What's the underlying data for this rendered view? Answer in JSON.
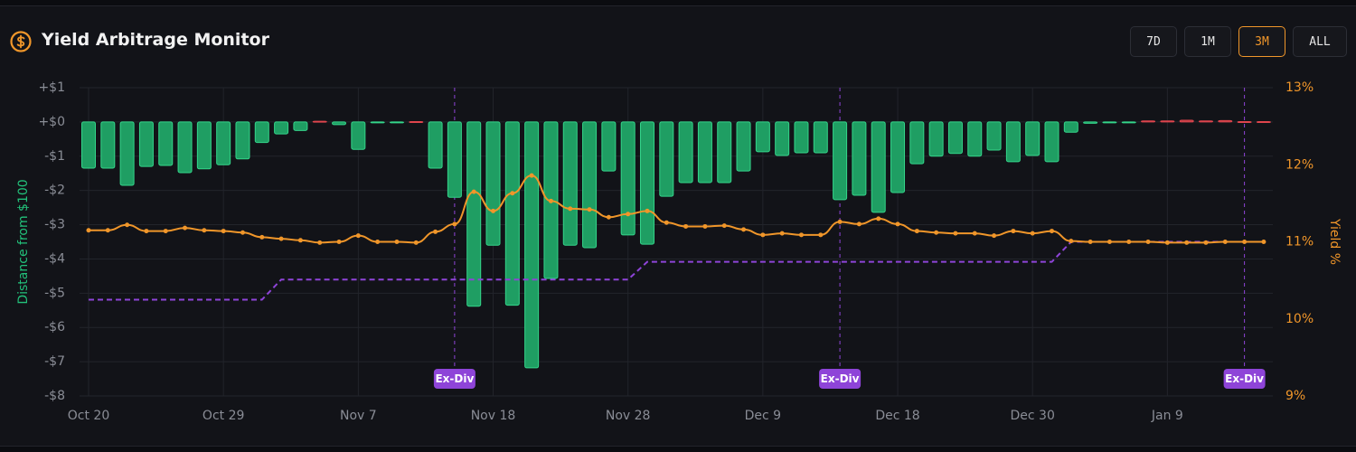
{
  "header": {
    "title": "Yield Arbitrage Monitor",
    "buttons": [
      "7D",
      "1M",
      "3M",
      "ALL"
    ],
    "active_button": 2
  },
  "chart_data": {
    "type": "bar",
    "categories": [
      "Oct 20",
      null,
      null,
      null,
      null,
      null,
      null,
      "Oct 29",
      null,
      null,
      null,
      null,
      null,
      null,
      "Nov 7",
      null,
      null,
      null,
      null,
      null,
      null,
      "Nov 18",
      null,
      null,
      null,
      null,
      null,
      null,
      "Nov 28",
      null,
      null,
      null,
      null,
      null,
      null,
      "Dec 9",
      null,
      null,
      null,
      null,
      null,
      null,
      "Dec 18",
      null,
      null,
      null,
      null,
      null,
      null,
      "Dec 30",
      null,
      null,
      null,
      null,
      null,
      null,
      "Jan 9",
      null,
      null,
      null,
      null,
      null
    ],
    "series": [
      {
        "type": "bar",
        "color": "#1f9e63",
        "positive_color": "#e0454d",
        "values": [
          -1.35,
          -1.35,
          -1.85,
          -1.3,
          -1.27,
          -1.48,
          -1.37,
          -1.25,
          -1.08,
          -0.6,
          -0.35,
          -0.25,
          0.02,
          -0.08,
          -0.8,
          0,
          0,
          0.01,
          -1.35,
          -2.2,
          -5.38,
          -3.6,
          -5.35,
          -7.18,
          -4.57,
          -3.6,
          -3.67,
          -1.43,
          -3.3,
          -3.57,
          -2.17,
          -1.77,
          -1.77,
          -1.77,
          -1.43,
          -0.87,
          -0.98,
          -0.9,
          -0.9,
          -2.27,
          -2.14,
          -2.64,
          -2.06,
          -1.22,
          -1.0,
          -0.92,
          -1.0,
          -0.82,
          -1.16,
          -0.98,
          -1.16,
          -0.3,
          -0.04,
          -0.01,
          0,
          0.03,
          0.03,
          0.05,
          0.03,
          0.04,
          0.01,
          0.01
        ]
      },
      {
        "type": "line",
        "axis": "y2",
        "color": "#f0962a",
        "values": [
          11.15,
          11.15,
          11.22,
          11.14,
          11.14,
          11.18,
          11.15,
          11.14,
          11.12,
          11.06,
          11.04,
          11.02,
          10.99,
          11.0,
          11.08,
          11.0,
          11.0,
          10.99,
          11.13,
          11.23,
          11.65,
          11.4,
          11.63,
          11.86,
          11.53,
          11.43,
          11.42,
          11.32,
          11.36,
          11.4,
          11.25,
          11.2,
          11.2,
          11.21,
          11.16,
          11.09,
          11.11,
          11.09,
          11.09,
          11.26,
          11.23,
          11.3,
          11.23,
          11.14,
          11.12,
          11.11,
          11.11,
          11.08,
          11.14,
          11.11,
          11.14,
          11.01,
          11.0,
          11.0,
          11.0,
          11.0,
          10.99,
          10.99,
          10.99,
          11.0,
          11.0,
          11.0
        ]
      },
      {
        "type": "dashed",
        "axis": "y2",
        "color": "#8e44d8",
        "values": [
          10.25,
          10.25,
          10.25,
          10.25,
          10.25,
          10.25,
          10.25,
          10.25,
          10.25,
          10.25,
          10.51,
          10.51,
          10.51,
          10.51,
          10.51,
          10.51,
          10.51,
          10.51,
          10.51,
          10.51,
          10.51,
          10.51,
          10.51,
          10.51,
          10.51,
          10.51,
          10.51,
          10.51,
          10.51,
          10.74,
          10.74,
          10.74,
          10.74,
          10.74,
          10.74,
          10.74,
          10.74,
          10.74,
          10.74,
          10.74,
          10.74,
          10.74,
          10.74,
          10.74,
          10.74,
          10.74,
          10.74,
          10.74,
          10.74,
          10.74,
          10.74,
          11.0,
          11.0,
          11.0,
          11.0,
          11.0,
          11.0,
          11.0,
          11.0,
          11.0,
          11.0,
          11.0
        ]
      }
    ],
    "ylabel": "Distance from $100",
    "y2label": "Yield %",
    "ylim": [
      -8,
      1
    ],
    "yticks": [
      {
        "value": -8,
        "label": "-$8"
      },
      {
        "value": -7,
        "label": "-$7"
      },
      {
        "value": -6,
        "label": "-$6"
      },
      {
        "value": -5,
        "label": "-$5"
      },
      {
        "value": -4,
        "label": "-$4"
      },
      {
        "value": -3,
        "label": "-$3"
      },
      {
        "value": -2,
        "label": "-$2"
      },
      {
        "value": -1,
        "label": "-$1"
      },
      {
        "value": 0,
        "label": "+$0"
      },
      {
        "value": 1,
        "label": "+$1"
      }
    ],
    "y2lim": [
      9,
      13
    ],
    "y2ticks": [
      {
        "value": 9,
        "label": "9%"
      },
      {
        "value": 10,
        "label": "10%"
      },
      {
        "value": 11,
        "label": "11%"
      },
      {
        "value": 12,
        "label": "12%"
      },
      {
        "value": 13,
        "label": "13%"
      }
    ],
    "grid": true,
    "annotations": [
      {
        "at": 19,
        "text": "Ex-Div"
      },
      {
        "at": 39,
        "text": "Ex-Div"
      },
      {
        "at": 60,
        "text": "Ex-Div"
      }
    ]
  }
}
